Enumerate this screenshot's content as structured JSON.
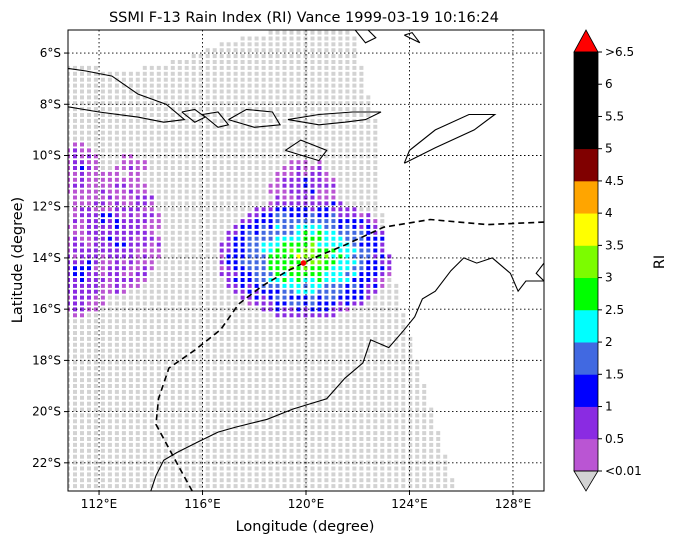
{
  "chart_data": {
    "type": "heatmap",
    "title": "SSMI F-13 Rain Index (RI) Vance 1999-03-19 10:16:24",
    "xlabel": "Longitude (degree)",
    "ylabel": "Latitude (degree)",
    "xlim": [
      110.8,
      129.2
    ],
    "ylim": [
      -23.1,
      -5.1
    ],
    "x_ticks": [
      {
        "value": 112,
        "label": "112°E"
      },
      {
        "value": 116,
        "label": "116°E"
      },
      {
        "value": 120,
        "label": "120°E"
      },
      {
        "value": 124,
        "label": "124°E"
      },
      {
        "value": 128,
        "label": "128°E"
      }
    ],
    "y_ticks": [
      {
        "value": -6,
        "label": "6°S"
      },
      {
        "value": -8,
        "label": "8°S"
      },
      {
        "value": -10,
        "label": "10°S"
      },
      {
        "value": -12,
        "label": "12°S"
      },
      {
        "value": -14,
        "label": "14°S"
      },
      {
        "value": -16,
        "label": "16°S"
      },
      {
        "value": -18,
        "label": "18°S"
      },
      {
        "value": -20,
        "label": "20°S"
      },
      {
        "value": -22,
        "label": "22°S"
      }
    ],
    "grid": true,
    "colorbar": {
      "label": "RI",
      "extend": "both",
      "under_color": "#d3d3d3",
      "over_color": "#ff0000",
      "colors": [
        "#ba55d3",
        "#8a2be2",
        "#0000ff",
        "#4169e1",
        "#00ffff",
        "#00ff00",
        "#7cfc00",
        "#ffff00",
        "#ffa500",
        "#800000",
        "#000000",
        "#000000",
        "#000000"
      ],
      "tick_labels": [
        "<0.01",
        "0.5",
        "1",
        "1.5",
        "2",
        "2.5",
        "3",
        "3.5",
        "4",
        "4.5",
        "5",
        "5.5",
        "6",
        ">6.5"
      ]
    },
    "storm_track": {
      "style": "dashed",
      "lon": [
        115.6,
        115.0,
        114.2,
        114.3,
        114.7,
        115.7,
        116.7,
        117.4,
        118.3,
        119.3,
        120.3,
        121.5,
        123.0,
        124.8,
        127.0,
        129.2
      ],
      "lat": [
        -23.1,
        -22.0,
        -20.5,
        -19.5,
        -18.3,
        -17.6,
        -16.8,
        -15.8,
        -15.1,
        -14.5,
        -14.0,
        -13.5,
        -12.8,
        -12.5,
        -12.7,
        -12.6
      ]
    },
    "storm_center": {
      "lon": 119.9,
      "lat": -14.2,
      "color": "#ff0000"
    },
    "rain_cells": [
      {
        "lon": 120.0,
        "lat": -14.0,
        "rx": 3.4,
        "ry": 2.4,
        "value": 3.5
      },
      {
        "lon": 112.6,
        "lat": -13.0,
        "rx": 1.9,
        "ry": 2.4,
        "value": 1.0
      },
      {
        "lon": 111.3,
        "lat": -14.7,
        "rx": 1.2,
        "ry": 1.6,
        "value": 1.2
      },
      {
        "lon": 119.9,
        "lat": -11.3,
        "rx": 1.3,
        "ry": 1.2,
        "value": 1.0
      },
      {
        "lon": 111.3,
        "lat": -10.6,
        "rx": 0.8,
        "ry": 1.1,
        "value": 0.8
      },
      {
        "lon": 113.2,
        "lat": -10.4,
        "rx": 0.7,
        "ry": 0.5,
        "value": 0.5
      }
    ]
  }
}
